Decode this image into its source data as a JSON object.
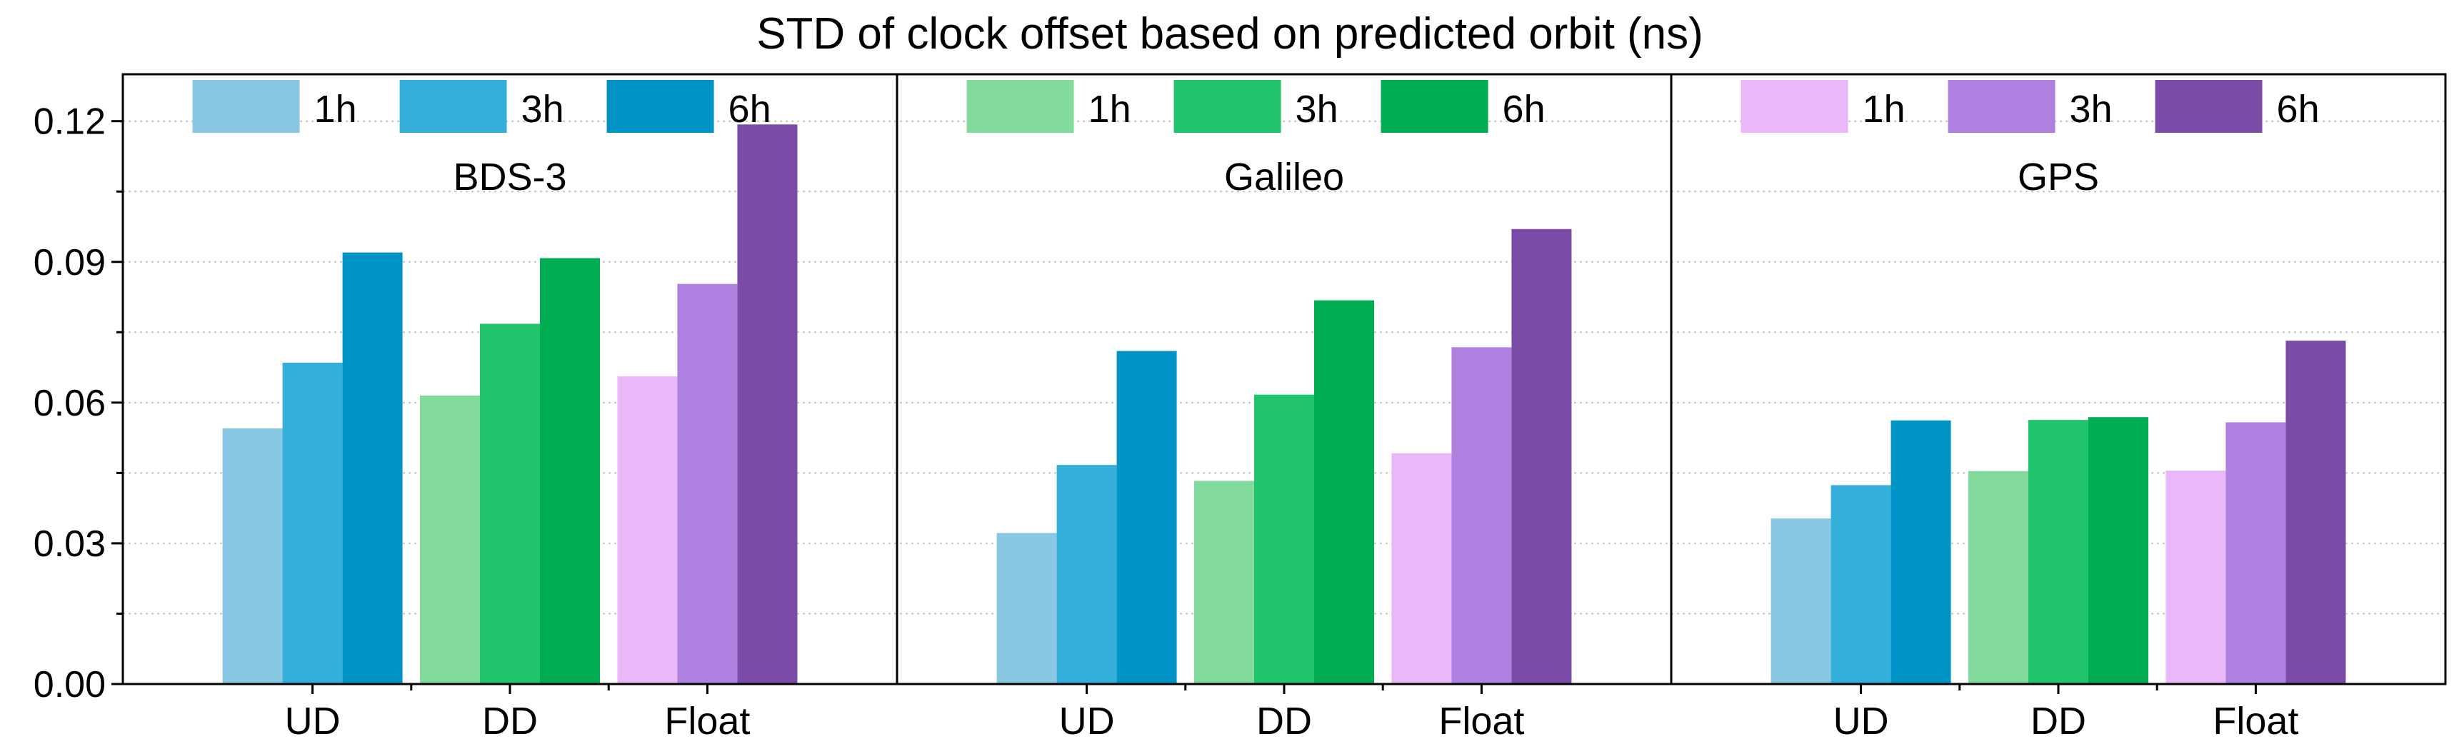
{
  "chart_data": {
    "type": "bar",
    "title": "STD of clock offset based on predicted orbit (ns)",
    "ylim": [
      0,
      0.13
    ],
    "yticks": [
      "0.00",
      "0.03",
      "0.06",
      "0.09",
      "0.12"
    ],
    "grid": true,
    "categories": [
      "UD",
      "DD",
      "Float"
    ],
    "series_names": [
      "1h",
      "3h",
      "6h"
    ],
    "colors": {
      "UD": [
        "#89c8e3",
        "#33afda",
        "#0094c6"
      ],
      "DD": [
        "#82da9c",
        "#1fc46d",
        "#00ad52"
      ],
      "Float": [
        "#eab8f9",
        "#ae81e0",
        "#7a4ca8"
      ]
    },
    "panels": [
      {
        "label": "BDS-3",
        "legend_group": "UD",
        "values": {
          "UD": [
            0.0545,
            0.0685,
            0.092
          ],
          "DD": [
            0.0615,
            0.0768,
            0.0908
          ],
          "Float": [
            0.0656,
            0.0853,
            0.1193
          ]
        }
      },
      {
        "label": "Galileo",
        "legend_group": "DD",
        "values": {
          "UD": [
            0.0322,
            0.0467,
            0.071
          ],
          "DD": [
            0.0433,
            0.0617,
            0.0818
          ],
          "Float": [
            0.0492,
            0.0718,
            0.097
          ]
        }
      },
      {
        "label": "GPS",
        "legend_group": "Float",
        "values": {
          "UD": [
            0.0353,
            0.0424,
            0.0562
          ],
          "DD": [
            0.0454,
            0.0563,
            0.0569
          ],
          "Float": [
            0.0455,
            0.0558,
            0.0732
          ]
        }
      }
    ]
  }
}
